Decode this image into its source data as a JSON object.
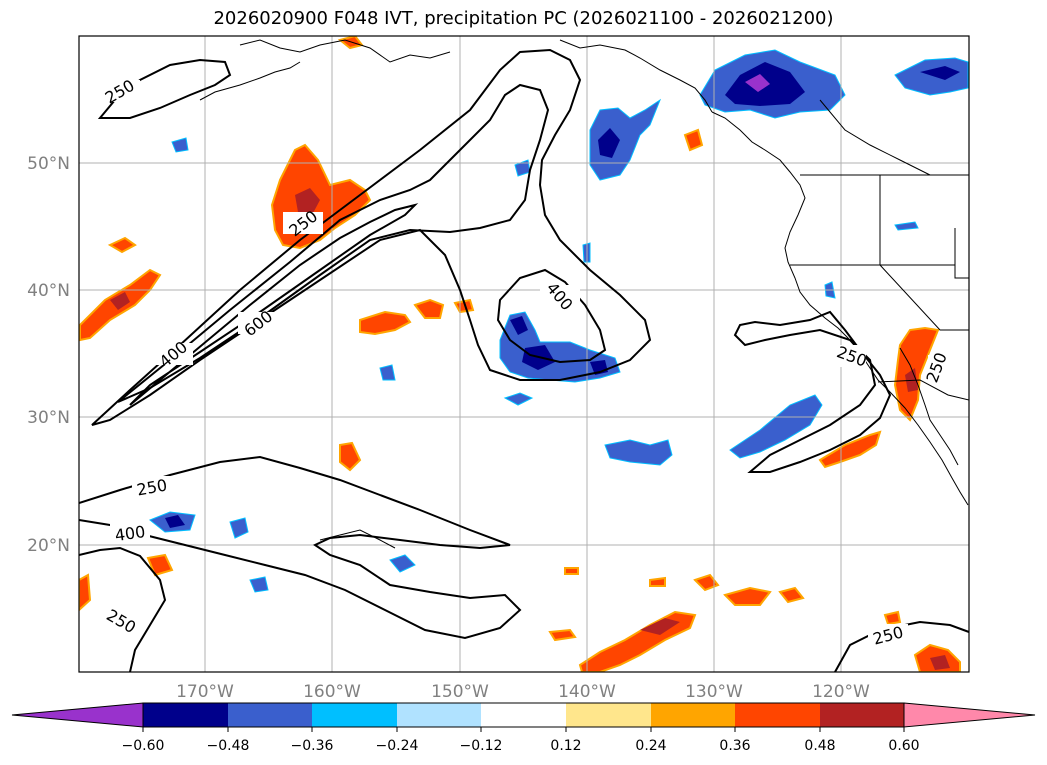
{
  "title": "2026020900 F048 IVT, precipitation PC (2026021100 - 2026021200)",
  "map": {
    "latitude_labels": [
      "50°N",
      "40°N",
      "30°N",
      "20°N"
    ],
    "longitude_labels": [
      "170°W",
      "160°W",
      "150°W",
      "140°W",
      "130°W",
      "120°W"
    ],
    "ivt_contour_labels": [
      "250",
      "250",
      "400",
      "600",
      "400",
      "250",
      "250",
      "400",
      "250",
      "250",
      "250"
    ]
  },
  "colorbar": {
    "tick_labels": [
      "−0.60",
      "−0.48",
      "−0.36",
      "−0.24",
      "−0.12",
      "0.12",
      "0.24",
      "0.36",
      "0.48",
      "0.60"
    ],
    "colors": [
      "#9932cc",
      "#00008b",
      "#3a5fcd",
      "#00bfff",
      "#b0e2ff",
      "#ffffff",
      "#ffe68c",
      "#ffa500",
      "#ff4500",
      "#b22222",
      "#ff88aa"
    ]
  }
}
